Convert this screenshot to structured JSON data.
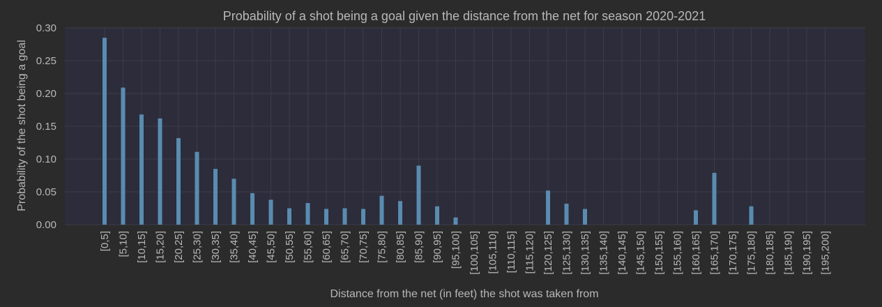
{
  "chart_data": {
    "type": "bar",
    "title": "Probability of a shot being a goal given the distance from the net for season 2020-2021",
    "xlabel": "Distance from the net (in feet) the shot was taken from",
    "ylabel": "Probability of the shot being a goal",
    "ylim": [
      0,
      0.3
    ],
    "yticks": [
      "0.00",
      "0.05",
      "0.10",
      "0.15",
      "0.20",
      "0.25",
      "0.30"
    ],
    "grid": true,
    "categories": [
      "[0,5]",
      "[5,10]",
      "[10,15]",
      "[15,20]",
      "[20,25]",
      "[25,30]",
      "[30,35]",
      "[35,40]",
      "[40,45]",
      "[45,50]",
      "[50,55]",
      "[55,60]",
      "[60,65]",
      "[65,70]",
      "[70,75]",
      "[75,80]",
      "[80,85]",
      "[85,90]",
      "[90,95]",
      "[95,100]",
      "[100,105]",
      "[105,110]",
      "[110,115]",
      "[115,120]",
      "[120,125]",
      "[125,130]",
      "[130,135]",
      "[135,140]",
      "[140,145]",
      "[145,150]",
      "[150,155]",
      "[155,160]",
      "[160,165]",
      "[165,170]",
      "[170,175]",
      "[175,180]",
      "[180,185]",
      "[185,190]",
      "[190,195]",
      "[195,200]"
    ],
    "values": [
      0.285,
      0.209,
      0.168,
      0.162,
      0.132,
      0.111,
      0.085,
      0.07,
      0.048,
      0.038,
      0.025,
      0.033,
      0.024,
      0.025,
      0.024,
      0.044,
      0.036,
      0.09,
      0.028,
      0.011,
      0,
      0,
      0,
      0,
      0.052,
      0.032,
      0.024,
      0,
      0,
      0,
      0,
      0,
      0.022,
      0.079,
      0,
      0.028,
      0,
      0,
      0,
      0
    ],
    "colors": {
      "background": "#2b2b2b",
      "plot_background": "#2c2c3a",
      "bar": "#5a8bb0",
      "grid": "#3c3c4a",
      "text": "#b8b8b8"
    }
  }
}
